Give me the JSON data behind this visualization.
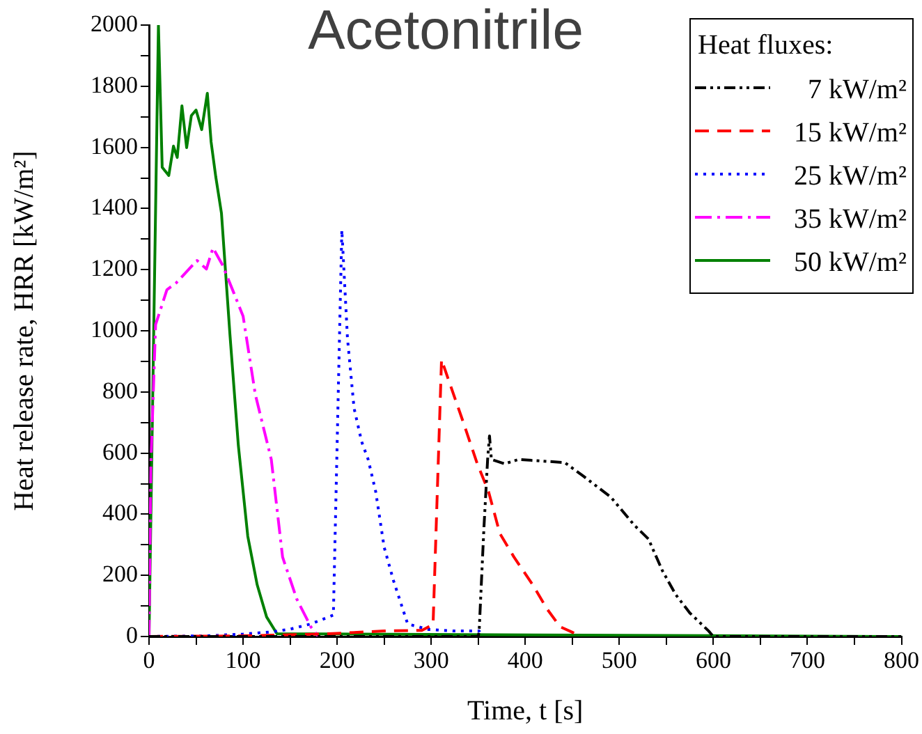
{
  "chart_data": {
    "type": "line",
    "title": "Acetonitrile",
    "xlabel": "Time, t [s]",
    "ylabel": "Heat release rate, HRR [kW/m²]",
    "legend_title": "Heat fluxes:",
    "legend": "top right",
    "grid": false,
    "marker": "none",
    "xlim": [
      0,
      800
    ],
    "xticks": [
      0,
      {
        "value": 50,
        "label": null
      },
      100,
      {
        "value": 150,
        "label": null
      },
      200,
      {
        "value": 250,
        "label": null
      },
      300,
      {
        "value": 350,
        "label": null
      },
      400,
      {
        "value": 450,
        "label": null
      },
      500,
      {
        "value": 550,
        "label": null
      },
      600,
      {
        "value": 650,
        "label": null
      },
      700,
      {
        "value": 750,
        "label": null
      },
      800
    ],
    "ylim": [
      0,
      2000
    ],
    "yticks": [
      0,
      {
        "value": 100,
        "label": null
      },
      200,
      {
        "value": 300,
        "label": null
      },
      400,
      {
        "value": 500,
        "label": null
      },
      600,
      {
        "value": 700,
        "label": null
      },
      800,
      {
        "value": 900,
        "label": null
      },
      1000,
      {
        "value": 1100,
        "label": null
      },
      1200,
      {
        "value": 1300,
        "label": null
      },
      1400,
      {
        "value": 1500,
        "label": null
      },
      1600,
      {
        "value": 1700,
        "label": null
      },
      1800,
      {
        "value": 1900,
        "label": null
      },
      2000
    ],
    "series": [
      {
        "name": "7 kW/m²",
        "color": "#000000",
        "line_style": "dashdotdot",
        "x": [
          0,
          350,
          351,
          356,
          360,
          362,
          364,
          378,
          393,
          442,
          462,
          491,
          516,
          531,
          546,
          560,
          575,
          595,
          600,
          800
        ],
        "values": [
          0,
          0,
          18,
          351,
          579,
          656,
          579,
          565,
          579,
          569,
          524,
          456,
          364,
          319,
          214,
          137,
          77,
          18,
          0,
          0
        ]
      },
      {
        "name": "15 kW/m²",
        "color": "#ff0000",
        "line_style": "dashed",
        "x": [
          0,
          100,
          191,
          250,
          290,
          302,
          311,
          317,
          334,
          349,
          361,
          373,
          388,
          408,
          423,
          437,
          450,
          460
        ],
        "values": [
          0,
          2,
          9,
          18,
          20,
          39,
          906,
          852,
          702,
          565,
          474,
          337,
          260,
          169,
          91,
          32,
          14,
          0
        ]
      },
      {
        "name": "25 kW/m²",
        "color": "#0000ff",
        "line_style": "dotted",
        "x": [
          0,
          60,
          100,
          130,
          150,
          172,
          196,
          205,
          211,
          218,
          226,
          233,
          241,
          250,
          260,
          275,
          297,
          324,
          351,
          355
        ],
        "values": [
          0,
          2,
          8,
          15,
          24,
          41,
          70,
          1330,
          975,
          747,
          638,
          579,
          474,
          292,
          182,
          41,
          23,
          18,
          18,
          0
        ]
      },
      {
        "name": "35 kW/m²",
        "color": "#ff00ff",
        "line_style": "dashdot",
        "x": [
          0,
          2,
          7,
          19,
          29,
          51,
          61,
          68,
          78,
          90,
          100,
          113,
          130,
          142,
          157,
          172,
          180
        ],
        "values": [
          0,
          565,
          1020,
          1134,
          1157,
          1230,
          1202,
          1271,
          1216,
          1125,
          1048,
          792,
          579,
          260,
          123,
          32,
          0
        ]
      },
      {
        "name": "50 kW/m²",
        "color": "#008000",
        "line_style": "solid",
        "x": [
          0,
          10,
          14,
          21,
          26,
          30,
          35,
          40,
          45,
          50,
          56,
          62,
          66,
          71,
          77,
          86,
          95,
          105,
          115,
          125,
          136,
          800
        ],
        "values": [
          0,
          2000,
          1535,
          1508,
          1604,
          1567,
          1736,
          1599,
          1704,
          1722,
          1658,
          1777,
          1618,
          1503,
          1385,
          989,
          624,
          328,
          169,
          64,
          9,
          0
        ]
      }
    ]
  }
}
